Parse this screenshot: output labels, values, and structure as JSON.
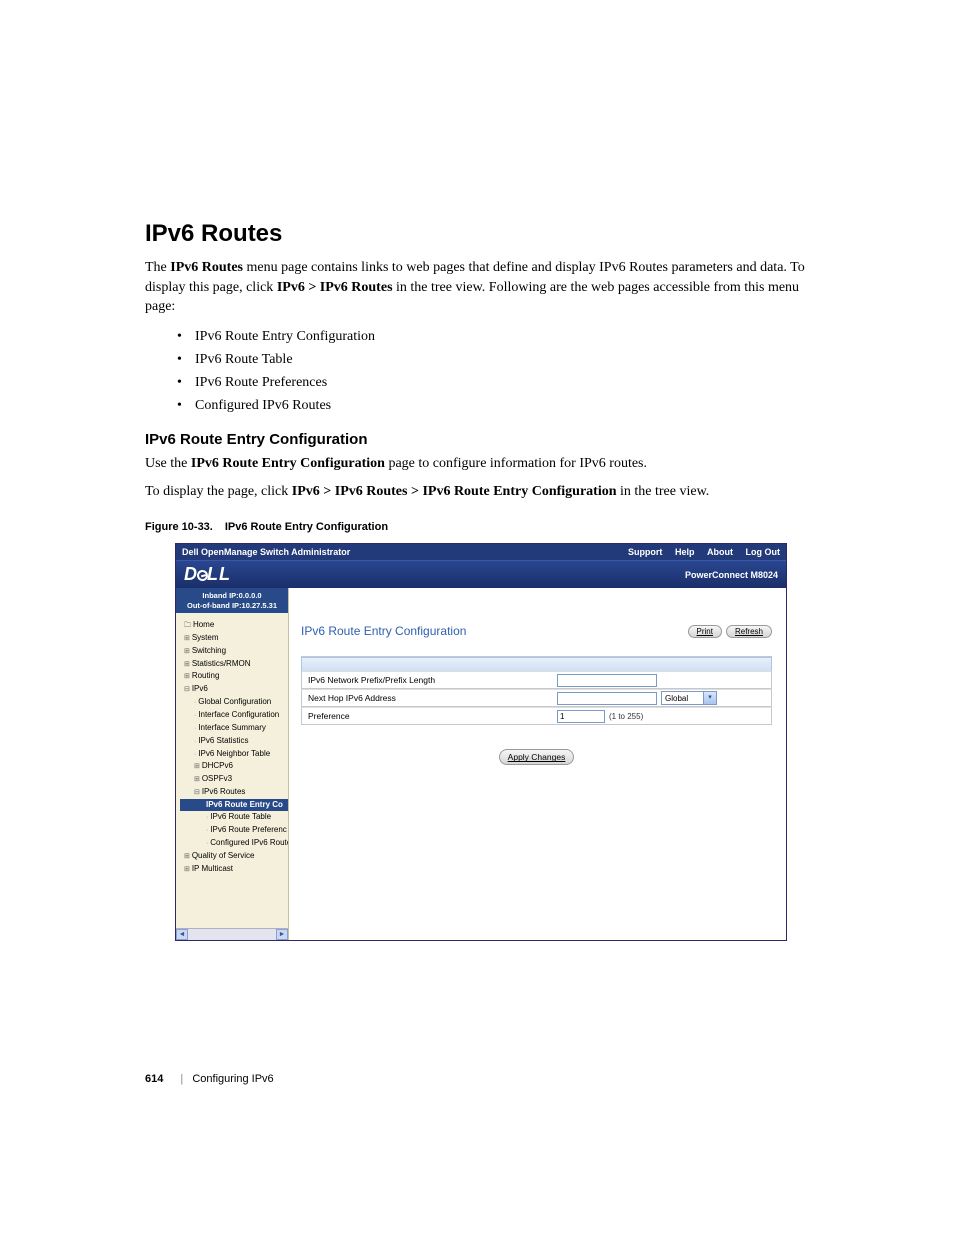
{
  "page": {
    "title": "IPv6 Routes",
    "intro_parts": {
      "p1a": "The ",
      "p1b": "IPv6 Routes",
      "p1c": " menu page contains links to web pages that define and display IPv6 Routes parameters and data. To display this page, click ",
      "p1d": "IPv6 > IPv6 Routes",
      "p1e": " in the tree view. Following are the web pages accessible from this menu page:"
    },
    "bullets": [
      "IPv6 Route Entry Configuration",
      "IPv6 Route Table",
      "IPv6 Route Preferences",
      "Configured IPv6 Routes"
    ],
    "subhead": "IPv6 Route Entry Configuration",
    "sub_p1a": "Use the ",
    "sub_p1b": "IPv6 Route Entry Configuration",
    "sub_p1c": " page to configure information for IPv6 routes.",
    "sub_p2a": "To display the page, click ",
    "sub_p2b": "IPv6 > IPv6 Routes > IPv6 Route Entry Configuration",
    "sub_p2c": " in the tree view.",
    "fig_label": "Figure 10-33.",
    "fig_title": "IPv6 Route Entry Configuration"
  },
  "screenshot": {
    "topbar": {
      "title": "Dell OpenManage Switch Administrator",
      "support": "Support",
      "help": "Help",
      "about": "About",
      "logout": "Log Out"
    },
    "brand": {
      "model": "PowerConnect M8024"
    },
    "ipblock": {
      "inband": "Inband IP:0.0.0.0",
      "oob": "Out-of-band IP:10.27.5.31"
    },
    "tree": {
      "home": "Home",
      "system": "System",
      "switching": "Switching",
      "stats": "Statistics/RMON",
      "routing": "Routing",
      "ipv6": "IPv6",
      "global": "Global Configuration",
      "ifconf": "Interface Configuration",
      "ifsum": "Interface Summary",
      "ipv6stats": "IPv6 Statistics",
      "neighbor": "IPv6 Neighbor Table",
      "dhcpv6": "DHCPv6",
      "ospfv3": "OSPFv3",
      "routes": "IPv6 Routes",
      "entry": "IPv6 Route Entry Co",
      "table": "IPv6 Route Table",
      "pref": "IPv6 Route Preferenc",
      "conf": "Configured IPv6 Route",
      "qos": "Quality of Service",
      "multicast": "IP Multicast"
    },
    "main": {
      "title": "IPv6 Route Entry Configuration",
      "print": "Print",
      "refresh": "Refresh",
      "row1": "IPv6 Network Prefix/Prefix Length",
      "row2": "Next Hop IPv6 Address",
      "row3": "Preference",
      "dd_value": "Global",
      "pref_value": "1",
      "pref_hint": "(1 to 255)",
      "apply": "Apply Changes"
    }
  },
  "footer": {
    "page_number": "614",
    "chapter": "Configuring IPv6"
  }
}
